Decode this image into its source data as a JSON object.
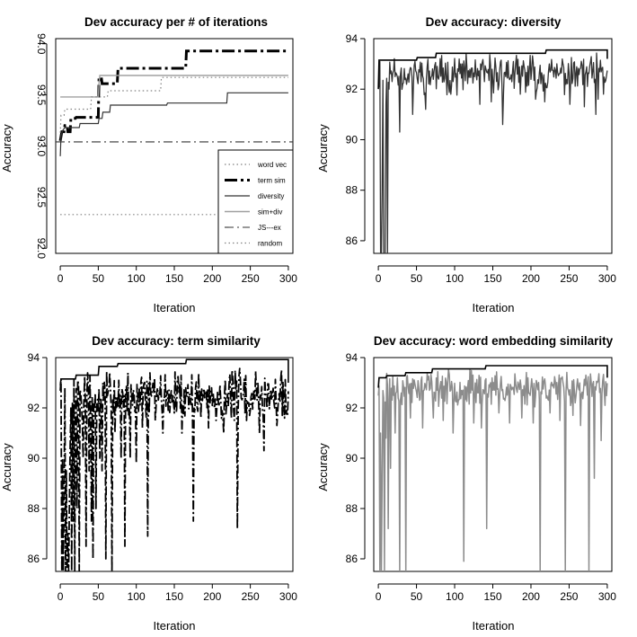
{
  "chart_data": [
    {
      "type": "line",
      "title": "Dev accuracy per # of iterations",
      "xlabel": "Iteration",
      "ylabel": "Accuracy",
      "xlim": [
        -6,
        306
      ],
      "ylim": [
        91.95,
        94.05
      ],
      "xticks": [
        0,
        50,
        100,
        150,
        200,
        250,
        300
      ],
      "yticks": [
        92.0,
        92.5,
        93.0,
        93.5,
        94.0
      ],
      "ytick_labels": [
        "92.0",
        "92.5",
        "93.0",
        "93.5",
        "94.0"
      ],
      "y_tick_labels_rotated": true,
      "grid": false,
      "legend": "bottom-right",
      "series": [
        {
          "name": "word vec",
          "color": "#808080",
          "dash": "1.5,3",
          "width": 1.2,
          "points": [
            [
              0,
              92.33
            ],
            [
              300,
              92.33
            ]
          ]
        },
        {
          "name": "term sim",
          "color": "#000000",
          "dash": "14,4,3,4",
          "width": 3,
          "points": [
            [
              0,
              93.05
            ],
            [
              2,
              93.14
            ],
            [
              5,
              93.14
            ],
            [
              6,
              93.2
            ],
            [
              9,
              93.2
            ],
            [
              10,
              93.14
            ],
            [
              13,
              93.14
            ],
            [
              14,
              93.27
            ],
            [
              17,
              93.27
            ],
            [
              20,
              93.27
            ],
            [
              21,
              93.28
            ],
            [
              50,
              93.28
            ],
            [
              51,
              93.67
            ],
            [
              54,
              93.67
            ],
            [
              55,
              93.61
            ],
            [
              75,
              93.61
            ],
            [
              76,
              93.76
            ],
            [
              165,
              93.76
            ],
            [
              166,
              93.93
            ],
            [
              300,
              93.93
            ]
          ]
        },
        {
          "name": "diversity",
          "color": "#333333",
          "dash": "",
          "width": 1.2,
          "points": [
            [
              0,
              92.9
            ],
            [
              1,
              93.1
            ],
            [
              3,
              93.15
            ],
            [
              6,
              93.18
            ],
            [
              25,
              93.18
            ],
            [
              26,
              93.22
            ],
            [
              50,
              93.22
            ],
            [
              51,
              93.27
            ],
            [
              55,
              93.27
            ],
            [
              56,
              93.33
            ],
            [
              65,
              93.33
            ],
            [
              66,
              93.4
            ],
            [
              140,
              93.4
            ],
            [
              141,
              93.42
            ],
            [
              219,
              93.42
            ],
            [
              220,
              93.52
            ],
            [
              300,
              93.52
            ]
          ]
        },
        {
          "name": "sim+div",
          "color": "#a0a0a0",
          "dash": "",
          "width": 1.4,
          "points": [
            [
              0,
              93.48
            ],
            [
              50,
              93.48
            ],
            [
              51,
              93.61
            ],
            [
              52,
              93.69
            ],
            [
              300,
              93.69
            ]
          ]
        },
        {
          "name": "JS---ex",
          "color": "#333333",
          "dash": "10,4,2,4",
          "width": 1.1,
          "points": [
            [
              -6,
              93.04
            ],
            [
              306,
              93.04
            ]
          ]
        },
        {
          "name": "random",
          "color": "#808080",
          "dash": "1.5,3",
          "width": 1.2,
          "points": [
            [
              0,
              93.13
            ],
            [
              1,
              93.3
            ],
            [
              5,
              93.3
            ],
            [
              6,
              93.36
            ],
            [
              40,
              93.36
            ],
            [
              41,
              93.48
            ],
            [
              62,
              93.48
            ],
            [
              63,
              93.54
            ],
            [
              132,
              93.54
            ],
            [
              133,
              93.67
            ],
            [
              300,
              93.67
            ]
          ]
        }
      ]
    },
    {
      "type": "line",
      "title": "Dev accuracy: diversity",
      "xlabel": "Iteration",
      "ylabel": "Accuracy",
      "xlim": [
        -6,
        306
      ],
      "ylim": [
        85.5,
        94.0
      ],
      "xticks": [
        0,
        50,
        100,
        150,
        200,
        250,
        300
      ],
      "yticks": [
        86,
        88,
        90,
        92,
        94
      ],
      "ytick_labels": [
        "86",
        "88",
        "90",
        "92",
        "94"
      ],
      "grid": false,
      "style": {
        "color": "#333333",
        "width": 1.3
      },
      "trace": {
        "n": 300,
        "base": 92.6,
        "amp": 0.55,
        "seed": 11,
        "dips": [
          [
            3,
            85.5
          ],
          [
            4,
            85.5
          ],
          [
            5,
            88.0
          ],
          [
            7,
            85.5
          ],
          [
            8,
            85.5
          ],
          [
            9,
            85.5
          ],
          [
            10,
            91.4
          ],
          [
            12,
            85.5
          ],
          [
            14,
            92.0
          ],
          [
            18,
            92.3
          ],
          [
            28,
            90.3
          ],
          [
            45,
            91.0
          ],
          [
            62,
            91.2
          ],
          [
            95,
            91.8
          ],
          [
            133,
            91.4
          ],
          [
            148,
            91.5
          ],
          [
            163,
            90.6
          ],
          [
            186,
            91.8
          ],
          [
            206,
            91.6
          ],
          [
            218,
            91.5
          ],
          [
            251,
            91.4
          ],
          [
            270,
            91.3
          ],
          [
            285,
            91.0
          ],
          [
            288,
            91.6
          ],
          [
            295,
            91.8
          ]
        ]
      },
      "best": [
        [
          0,
          92.0
        ],
        [
          1,
          93.15
        ],
        [
          50,
          93.15
        ],
        [
          51,
          93.25
        ],
        [
          75,
          93.25
        ],
        [
          76,
          93.42
        ],
        [
          219,
          93.42
        ],
        [
          220,
          93.55
        ],
        [
          300,
          93.55
        ],
        [
          300,
          93.2
        ]
      ]
    },
    {
      "type": "line",
      "title": "Dev accuracy: term similarity",
      "xlabel": "Iteration",
      "ylabel": "Accuracy",
      "xlim": [
        -6,
        306
      ],
      "ylim": [
        85.5,
        94.0
      ],
      "xticks": [
        0,
        50,
        100,
        150,
        200,
        250,
        300
      ],
      "yticks": [
        86,
        88,
        90,
        92,
        94
      ],
      "ytick_labels": [
        "86",
        "88",
        "90",
        "92",
        "94"
      ],
      "grid": false,
      "style": {
        "color": "#000000",
        "width": 1.8,
        "dash": "10,3,2,3"
      },
      "trace": {
        "n": 300,
        "base": 92.5,
        "amp": 0.75,
        "seed": 7,
        "dips": [
          [
            2,
            85.5
          ],
          [
            3,
            90.0
          ],
          [
            4,
            85.5
          ],
          [
            5,
            88.5
          ],
          [
            6,
            92.8
          ],
          [
            7,
            85.5
          ],
          [
            8,
            89.5
          ],
          [
            9,
            85.5
          ],
          [
            10,
            87.0
          ],
          [
            11,
            85.5
          ],
          [
            12,
            88.0
          ],
          [
            13,
            90.5
          ],
          [
            15,
            85.5
          ],
          [
            17,
            87.5
          ],
          [
            19,
            85.5
          ],
          [
            22,
            88.0
          ],
          [
            25,
            85.5
          ],
          [
            30,
            90.0
          ],
          [
            34,
            86.5
          ],
          [
            38,
            89.5
          ],
          [
            41,
            87.5
          ],
          [
            43,
            86.0
          ],
          [
            47,
            88.0
          ],
          [
            52,
            90.0
          ],
          [
            55,
            89.5
          ],
          [
            60,
            86.0
          ],
          [
            68,
            85.5
          ],
          [
            72,
            91.0
          ],
          [
            80,
            90.0
          ],
          [
            85,
            86.5
          ],
          [
            92,
            90.0
          ],
          [
            100,
            89.8
          ],
          [
            108,
            91.2
          ],
          [
            115,
            86.9
          ],
          [
            125,
            91.5
          ],
          [
            135,
            91.0
          ],
          [
            150,
            91.8
          ],
          [
            160,
            91.0
          ],
          [
            175,
            87.5
          ],
          [
            185,
            91.6
          ],
          [
            195,
            91.2
          ],
          [
            205,
            91.5
          ],
          [
            215,
            91.0
          ],
          [
            225,
            91.6
          ],
          [
            233,
            87.2
          ],
          [
            245,
            91.5
          ],
          [
            262,
            91.0
          ],
          [
            268,
            90.3
          ],
          [
            285,
            91.3
          ],
          [
            292,
            91.7
          ]
        ]
      },
      "best": [
        [
          0,
          92.9
        ],
        [
          1,
          93.15
        ],
        [
          20,
          93.15
        ],
        [
          21,
          93.3
        ],
        [
          50,
          93.3
        ],
        [
          51,
          93.65
        ],
        [
          75,
          93.65
        ],
        [
          76,
          93.76
        ],
        [
          165,
          93.76
        ],
        [
          166,
          93.92
        ],
        [
          300,
          93.92
        ],
        [
          300,
          93.0
        ]
      ]
    },
    {
      "type": "line",
      "title": "Dev accuracy: word embedding similarity",
      "xlabel": "Iteration",
      "ylabel": "Accuracy",
      "xlim": [
        -6,
        306
      ],
      "ylim": [
        85.5,
        94.0
      ],
      "xticks": [
        0,
        50,
        100,
        150,
        200,
        250,
        300
      ],
      "yticks": [
        86,
        88,
        90,
        92,
        94
      ],
      "ytick_labels": [
        "86",
        "88",
        "90",
        "92",
        "94"
      ],
      "grid": false,
      "style": {
        "color": "#8c8c8c",
        "width": 1.5
      },
      "trace": {
        "n": 300,
        "base": 92.8,
        "amp": 0.5,
        "seed": 23,
        "dips": [
          [
            2,
            85.5
          ],
          [
            3,
            91.0
          ],
          [
            4,
            85.5
          ],
          [
            5,
            89.0
          ],
          [
            8,
            85.5
          ],
          [
            10,
            90.8
          ],
          [
            13,
            87.2
          ],
          [
            16,
            89.6
          ],
          [
            22,
            91.0
          ],
          [
            28,
            85.5
          ],
          [
            36,
            85.5
          ],
          [
            42,
            91.6
          ],
          [
            58,
            91.2
          ],
          [
            72,
            91.6
          ],
          [
            85,
            91.5
          ],
          [
            98,
            91.0
          ],
          [
            112,
            85.9
          ],
          [
            125,
            91.4
          ],
          [
            135,
            91.2
          ],
          [
            142,
            87.2
          ],
          [
            158,
            91.8
          ],
          [
            172,
            91.4
          ],
          [
            188,
            91.6
          ],
          [
            203,
            91.4
          ],
          [
            212,
            85.5
          ],
          [
            225,
            91.8
          ],
          [
            238,
            91.5
          ],
          [
            245,
            85.5
          ],
          [
            255,
            91.7
          ],
          [
            265,
            91.3
          ],
          [
            276,
            85.5
          ],
          [
            283,
            89.2
          ],
          [
            292,
            90.7
          ],
          [
            297,
            92.1
          ]
        ]
      },
      "best": [
        [
          0,
          92.8
        ],
        [
          1,
          93.2
        ],
        [
          10,
          93.2
        ],
        [
          11,
          93.28
        ],
        [
          35,
          93.28
        ],
        [
          36,
          93.4
        ],
        [
          70,
          93.4
        ],
        [
          71,
          93.55
        ],
        [
          140,
          93.55
        ],
        [
          141,
          93.68
        ],
        [
          300,
          93.68
        ],
        [
          300,
          93.2
        ]
      ]
    }
  ]
}
